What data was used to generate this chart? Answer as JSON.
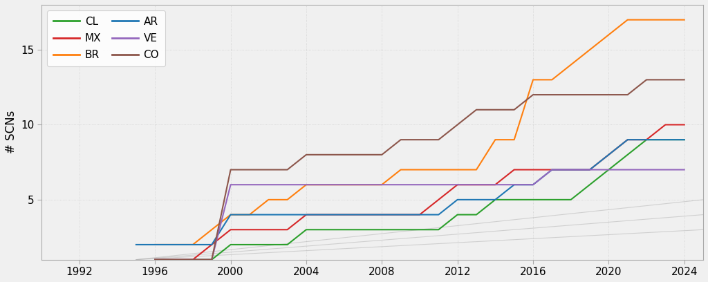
{
  "ylabel": "# SCNs",
  "background_color": "#f0f0f0",
  "plot_background": "#f0f0f0",
  "grid_color": "#cccccc",
  "series": {
    "CL": {
      "color": "#2ca02c",
      "data": [
        [
          1996,
          1
        ],
        [
          1997,
          1
        ],
        [
          1998,
          1
        ],
        [
          1999,
          1
        ],
        [
          2000,
          2
        ],
        [
          2001,
          2
        ],
        [
          2002,
          2
        ],
        [
          2003,
          2
        ],
        [
          2004,
          3
        ],
        [
          2005,
          3
        ],
        [
          2006,
          3
        ],
        [
          2007,
          3
        ],
        [
          2008,
          3
        ],
        [
          2009,
          3
        ],
        [
          2010,
          3
        ],
        [
          2011,
          3
        ],
        [
          2012,
          4
        ],
        [
          2013,
          4
        ],
        [
          2014,
          5
        ],
        [
          2015,
          5
        ],
        [
          2016,
          5
        ],
        [
          2017,
          5
        ],
        [
          2018,
          5
        ],
        [
          2019,
          6
        ],
        [
          2020,
          7
        ],
        [
          2021,
          8
        ],
        [
          2022,
          9
        ],
        [
          2023,
          9
        ],
        [
          2024,
          9
        ]
      ]
    },
    "MX": {
      "color": "#d62728",
      "data": [
        [
          1996,
          1
        ],
        [
          1997,
          1
        ],
        [
          1998,
          1
        ],
        [
          1999,
          2
        ],
        [
          2000,
          3
        ],
        [
          2001,
          3
        ],
        [
          2002,
          3
        ],
        [
          2003,
          3
        ],
        [
          2004,
          4
        ],
        [
          2005,
          4
        ],
        [
          2006,
          4
        ],
        [
          2007,
          4
        ],
        [
          2008,
          4
        ],
        [
          2009,
          4
        ],
        [
          2010,
          4
        ],
        [
          2011,
          5
        ],
        [
          2012,
          6
        ],
        [
          2013,
          6
        ],
        [
          2014,
          6
        ],
        [
          2015,
          7
        ],
        [
          2016,
          7
        ],
        [
          2017,
          7
        ],
        [
          2018,
          7
        ],
        [
          2019,
          7
        ],
        [
          2020,
          8
        ],
        [
          2021,
          9
        ],
        [
          2022,
          9
        ],
        [
          2023,
          10
        ],
        [
          2024,
          10
        ]
      ]
    },
    "BR": {
      "color": "#ff7f0e",
      "data": [
        [
          1996,
          2
        ],
        [
          1997,
          2
        ],
        [
          1998,
          2
        ],
        [
          1999,
          3
        ],
        [
          2000,
          4
        ],
        [
          2001,
          4
        ],
        [
          2002,
          5
        ],
        [
          2003,
          5
        ],
        [
          2004,
          6
        ],
        [
          2005,
          6
        ],
        [
          2006,
          6
        ],
        [
          2007,
          6
        ],
        [
          2008,
          6
        ],
        [
          2009,
          7
        ],
        [
          2010,
          7
        ],
        [
          2011,
          7
        ],
        [
          2012,
          7
        ],
        [
          2013,
          7
        ],
        [
          2014,
          9
        ],
        [
          2015,
          9
        ],
        [
          2016,
          13
        ],
        [
          2017,
          13
        ],
        [
          2018,
          14
        ],
        [
          2019,
          15
        ],
        [
          2020,
          16
        ],
        [
          2021,
          17
        ],
        [
          2022,
          17
        ],
        [
          2023,
          17
        ],
        [
          2024,
          17
        ]
      ]
    },
    "AR": {
      "color": "#1f77b4",
      "data": [
        [
          1995,
          2
        ],
        [
          1996,
          2
        ],
        [
          1997,
          2
        ],
        [
          1998,
          2
        ],
        [
          1999,
          2
        ],
        [
          2000,
          4
        ],
        [
          2001,
          4
        ],
        [
          2002,
          4
        ],
        [
          2003,
          4
        ],
        [
          2004,
          4
        ],
        [
          2005,
          4
        ],
        [
          2006,
          4
        ],
        [
          2007,
          4
        ],
        [
          2008,
          4
        ],
        [
          2009,
          4
        ],
        [
          2010,
          4
        ],
        [
          2011,
          4
        ],
        [
          2012,
          5
        ],
        [
          2013,
          5
        ],
        [
          2014,
          5
        ],
        [
          2015,
          6
        ],
        [
          2016,
          6
        ],
        [
          2017,
          7
        ],
        [
          2018,
          7
        ],
        [
          2019,
          7
        ],
        [
          2020,
          8
        ],
        [
          2021,
          9
        ],
        [
          2022,
          9
        ],
        [
          2023,
          9
        ],
        [
          2024,
          9
        ]
      ]
    },
    "VE": {
      "color": "#9467bd",
      "data": [
        [
          1996,
          1
        ],
        [
          1997,
          1
        ],
        [
          1998,
          1
        ],
        [
          1999,
          1
        ],
        [
          2000,
          6
        ],
        [
          2001,
          6
        ],
        [
          2002,
          6
        ],
        [
          2003,
          6
        ],
        [
          2004,
          6
        ],
        [
          2005,
          6
        ],
        [
          2006,
          6
        ],
        [
          2007,
          6
        ],
        [
          2008,
          6
        ],
        [
          2009,
          6
        ],
        [
          2010,
          6
        ],
        [
          2011,
          6
        ],
        [
          2012,
          6
        ],
        [
          2013,
          6
        ],
        [
          2014,
          6
        ],
        [
          2015,
          6
        ],
        [
          2016,
          6
        ],
        [
          2017,
          7
        ],
        [
          2018,
          7
        ],
        [
          2019,
          7
        ],
        [
          2020,
          7
        ],
        [
          2021,
          7
        ],
        [
          2022,
          7
        ],
        [
          2023,
          7
        ],
        [
          2024,
          7
        ]
      ]
    },
    "CO": {
      "color": "#8c564b",
      "data": [
        [
          1996,
          1
        ],
        [
          1997,
          1
        ],
        [
          1998,
          1
        ],
        [
          1999,
          1
        ],
        [
          2000,
          7
        ],
        [
          2001,
          7
        ],
        [
          2002,
          7
        ],
        [
          2003,
          7
        ],
        [
          2004,
          8
        ],
        [
          2005,
          8
        ],
        [
          2006,
          8
        ],
        [
          2007,
          8
        ],
        [
          2008,
          8
        ],
        [
          2009,
          9
        ],
        [
          2010,
          9
        ],
        [
          2011,
          9
        ],
        [
          2012,
          10
        ],
        [
          2013,
          11
        ],
        [
          2014,
          11
        ],
        [
          2015,
          11
        ],
        [
          2016,
          12
        ],
        [
          2017,
          12
        ],
        [
          2018,
          12
        ],
        [
          2019,
          12
        ],
        [
          2020,
          12
        ],
        [
          2021,
          12
        ],
        [
          2022,
          13
        ],
        [
          2023,
          13
        ],
        [
          2024,
          13
        ]
      ]
    }
  },
  "gray_lines": [
    [
      [
        1995,
        2025
      ],
      [
        1,
        5
      ]
    ],
    [
      [
        1995,
        2025
      ],
      [
        1,
        4
      ]
    ],
    [
      [
        1995,
        2025
      ],
      [
        1,
        3
      ]
    ]
  ],
  "xlim": [
    1990,
    2025
  ],
  "ylim": [
    1,
    18
  ],
  "xticks": [
    1992,
    1996,
    2000,
    2004,
    2008,
    2012,
    2016,
    2020,
    2024
  ],
  "yticks": [
    5,
    10,
    15
  ],
  "legend_col1": [
    "CL",
    "BR",
    "VE"
  ],
  "legend_col2": [
    "MX",
    "AR",
    "CO"
  ]
}
